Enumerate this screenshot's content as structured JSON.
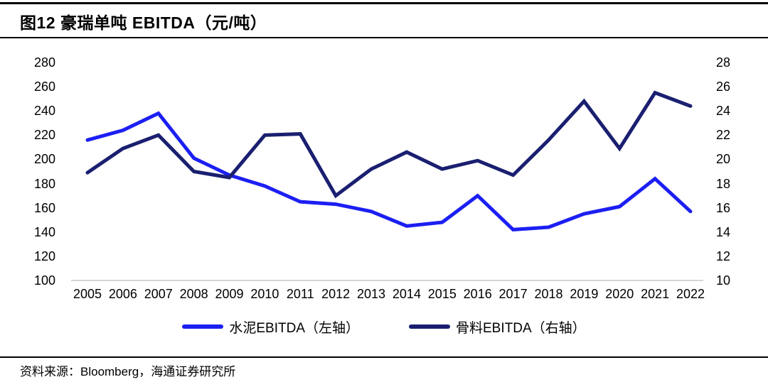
{
  "figure": {
    "title": "图12 豪瑞单吨 EBITDA（元/吨）",
    "source": "资料来源：Bloomberg，海通证券研究所"
  },
  "chart_data": {
    "type": "line",
    "title": "图12 豪瑞单吨 EBITDA（元/吨）",
    "x": [
      2005,
      2006,
      2007,
      2008,
      2009,
      2010,
      2011,
      2012,
      2013,
      2014,
      2015,
      2016,
      2017,
      2018,
      2019,
      2020,
      2021,
      2022
    ],
    "series": [
      {
        "name": "水泥EBITDA（左轴）",
        "axis": "left",
        "color": "#1c1ff2",
        "values": [
          216,
          224,
          238,
          201,
          187,
          178,
          165,
          163,
          157,
          145,
          148,
          170,
          142,
          144,
          155,
          161,
          184,
          157
        ]
      },
      {
        "name": "骨料EBITDA（右轴）",
        "axis": "right",
        "color": "#1a1f70",
        "values": [
          18.9,
          20.9,
          22.0,
          19.0,
          18.5,
          22.0,
          22.1,
          17.0,
          19.2,
          20.6,
          19.2,
          19.9,
          18.7,
          21.6,
          24.8,
          20.9,
          25.5,
          24.4
        ]
      }
    ],
    "left_axis": {
      "ticks": [
        280,
        260,
        240,
        220,
        200,
        180,
        160,
        140,
        120,
        100
      ],
      "range": [
        100,
        280
      ]
    },
    "right_axis": {
      "ticks": [
        28,
        26,
        24,
        22,
        20,
        18,
        16,
        14,
        12,
        10
      ],
      "range": [
        10,
        28
      ]
    },
    "grid": false,
    "legend_position": "bottom",
    "axis_line_color": "#c9c9c9"
  }
}
